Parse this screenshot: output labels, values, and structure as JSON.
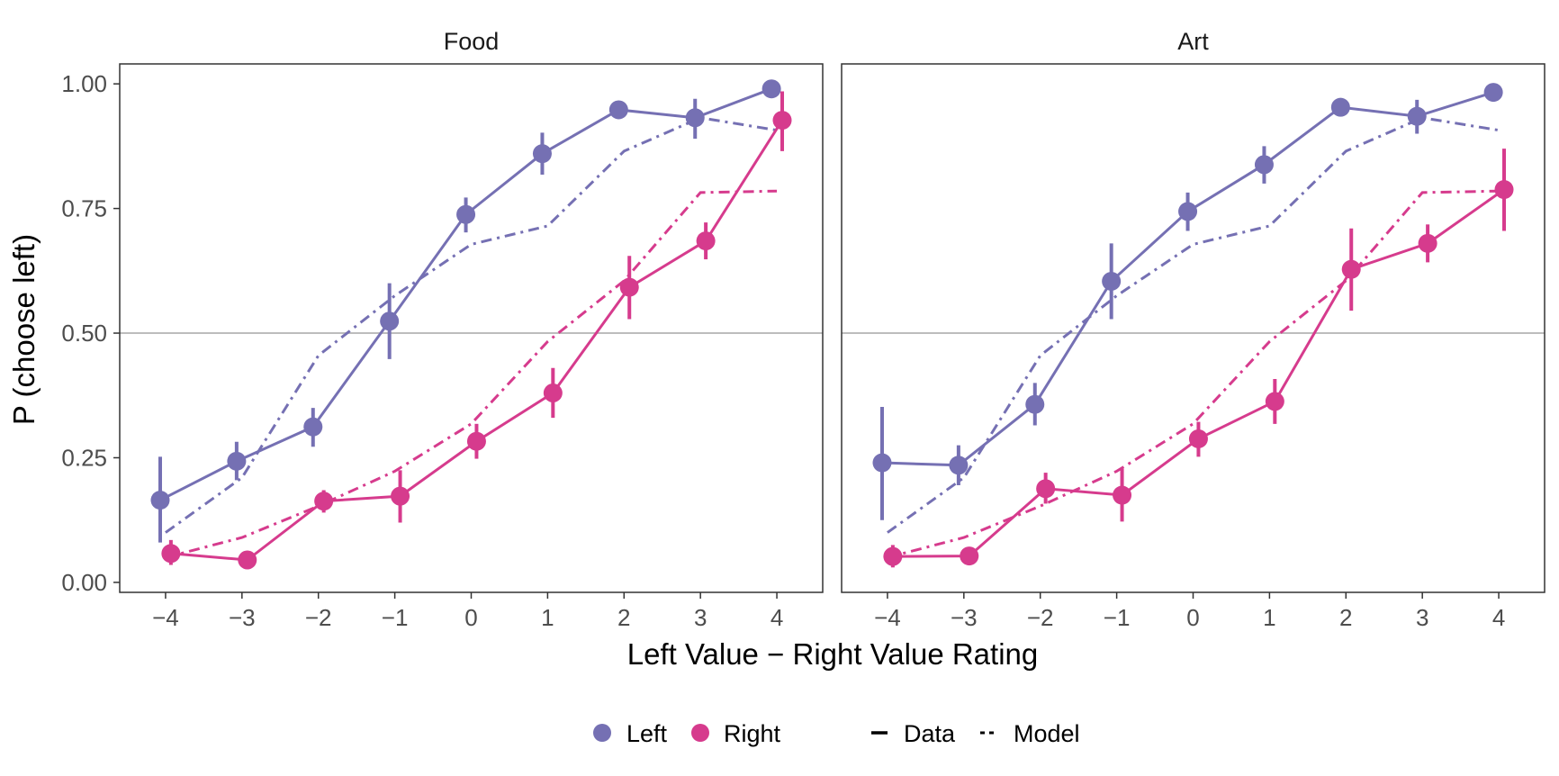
{
  "chart_data": {
    "type": "line",
    "xlabel": "Left Value − Right Value Rating",
    "ylabel": "P (choose left)",
    "x": [
      -4,
      -3,
      -2,
      -1,
      0,
      1,
      2,
      3,
      4
    ],
    "x_tick_labels": [
      "−4",
      "−3",
      "−2",
      "−1",
      "0",
      "1",
      "2",
      "3",
      "4"
    ],
    "ylim": [
      -0.02,
      1.04
    ],
    "y_ticks": [
      0,
      0.25,
      0.5,
      0.75,
      1
    ],
    "y_tick_labels": [
      "0.00",
      "0.25",
      "0.50",
      "0.75",
      "1.00"
    ],
    "reference_line": 0.5,
    "colors": {
      "Left": "#7570b3",
      "Right": "#d63b8d",
      "reference": "#bdbdbd"
    },
    "legend": {
      "position": "bottom",
      "color_items": [
        "Left",
        "Right"
      ],
      "linetype_items": [
        "Data",
        "Model"
      ]
    },
    "panels": [
      {
        "title": "Food",
        "series": [
          {
            "group": "Left",
            "kind": "Data",
            "values": [
              0.165,
              0.243,
              0.312,
              0.524,
              0.738,
              0.86,
              0.948,
              0.932,
              0.99
            ],
            "err_lo": [
              0.08,
              0.205,
              0.272,
              0.448,
              0.702,
              0.818,
              0.938,
              0.89,
              0.978
            ],
            "err_hi": [
              0.252,
              0.282,
              0.35,
              0.6,
              0.772,
              0.902,
              0.958,
              0.97,
              1.0
            ]
          },
          {
            "group": "Right",
            "kind": "Data",
            "values": [
              0.058,
              0.045,
              0.163,
              0.173,
              0.283,
              0.38,
              0.592,
              0.685,
              0.927
            ],
            "err_lo": [
              0.035,
              0.04,
              0.14,
              0.12,
              0.248,
              0.33,
              0.528,
              0.648,
              0.865
            ],
            "err_hi": [
              0.085,
              0.05,
              0.185,
              0.225,
              0.318,
              0.43,
              0.655,
              0.722,
              0.985
            ]
          },
          {
            "group": "Left",
            "kind": "Model",
            "values": [
              0.1,
              0.21,
              0.455,
              0.575,
              0.678,
              0.715,
              0.865,
              0.932,
              0.907
            ]
          },
          {
            "group": "Right",
            "kind": "Model",
            "values": [
              0.05,
              0.09,
              0.153,
              0.223,
              0.318,
              0.483,
              0.605,
              0.782,
              0.785
            ]
          }
        ]
      },
      {
        "title": "Art",
        "series": [
          {
            "group": "Left",
            "kind": "Data",
            "values": [
              0.24,
              0.235,
              0.357,
              0.604,
              0.744,
              0.838,
              0.953,
              0.935,
              0.983
            ],
            "err_lo": [
              0.125,
              0.195,
              0.315,
              0.528,
              0.705,
              0.8,
              0.945,
              0.9,
              0.975
            ],
            "err_hi": [
              0.352,
              0.275,
              0.4,
              0.68,
              0.782,
              0.875,
              0.962,
              0.968,
              0.992
            ]
          },
          {
            "group": "Right",
            "kind": "Data",
            "values": [
              0.052,
              0.053,
              0.188,
              0.175,
              0.288,
              0.363,
              0.628,
              0.68,
              0.788
            ],
            "err_lo": [
              0.03,
              0.045,
              0.158,
              0.122,
              0.252,
              0.318,
              0.545,
              0.642,
              0.705
            ],
            "err_hi": [
              0.075,
              0.06,
              0.22,
              0.228,
              0.322,
              0.408,
              0.71,
              0.718,
              0.87
            ]
          },
          {
            "group": "Left",
            "kind": "Model",
            "values": [
              0.1,
              0.21,
              0.455,
              0.575,
              0.678,
              0.715,
              0.865,
              0.932,
              0.907
            ]
          },
          {
            "group": "Right",
            "kind": "Model",
            "values": [
              0.05,
              0.09,
              0.153,
              0.223,
              0.318,
              0.483,
              0.605,
              0.782,
              0.785
            ]
          }
        ]
      }
    ]
  }
}
